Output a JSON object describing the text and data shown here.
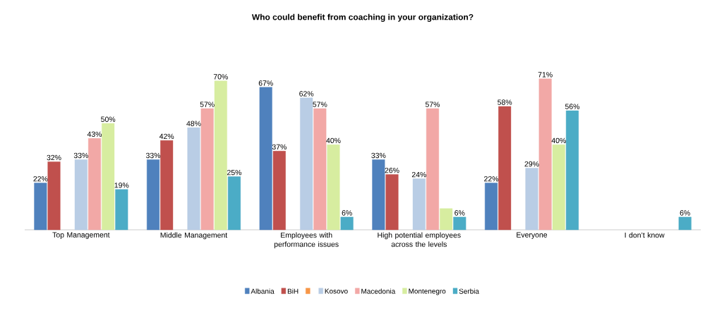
{
  "chart_data": {
    "type": "bar",
    "title": "Who could benefit from coaching in your organization?",
    "categories": [
      "Top Management",
      "Middle Management",
      "Employees with performance issues",
      "High potential employees across the levels",
      "Everyone",
      "I don’t know"
    ],
    "series": [
      {
        "name": "Albania",
        "color": "#4f81bd",
        "values": [
          22,
          33,
          67,
          33,
          22,
          null
        ],
        "value_labels": [
          "22%",
          "33%",
          "67%",
          "33%",
          "22%",
          null
        ]
      },
      {
        "name": "BiH",
        "color": "#c0504d",
        "values": [
          32,
          42,
          37,
          26,
          58,
          null
        ],
        "value_labels": [
          "32%",
          "42%",
          "37%",
          "26%",
          "58%",
          null
        ]
      },
      {
        "color": "#f79646",
        "values": [
          null,
          null,
          null,
          null,
          null,
          null
        ]
      },
      {
        "name": "Kosovo",
        "color": "#b9cde5",
        "values": [
          33,
          48,
          62,
          24,
          29,
          null
        ],
        "value_labels": [
          "33%",
          "48%",
          "62%",
          "24%",
          "29%",
          null
        ]
      },
      {
        "name": "Macedonia",
        "color": "#f2a8a6",
        "values": [
          43,
          57,
          57,
          57,
          71,
          null
        ],
        "value_labels": [
          "43%",
          "57%",
          "57%",
          "57%",
          "71%",
          null
        ]
      },
      {
        "name": "Montenegro",
        "color": "#d7eda0",
        "values": [
          50,
          70,
          40,
          10,
          40,
          null
        ],
        "value_labels": [
          "50%",
          "70%",
          "40%",
          null,
          "40%",
          null
        ]
      },
      {
        "name": "Serbia",
        "color": "#4bacc6",
        "values": [
          19,
          25,
          6,
          6,
          56,
          6
        ],
        "value_labels": [
          "19%",
          "25%",
          "6%",
          "6%",
          "56%",
          "6%"
        ]
      }
    ],
    "legend": "bottom",
    "grid": false
  }
}
